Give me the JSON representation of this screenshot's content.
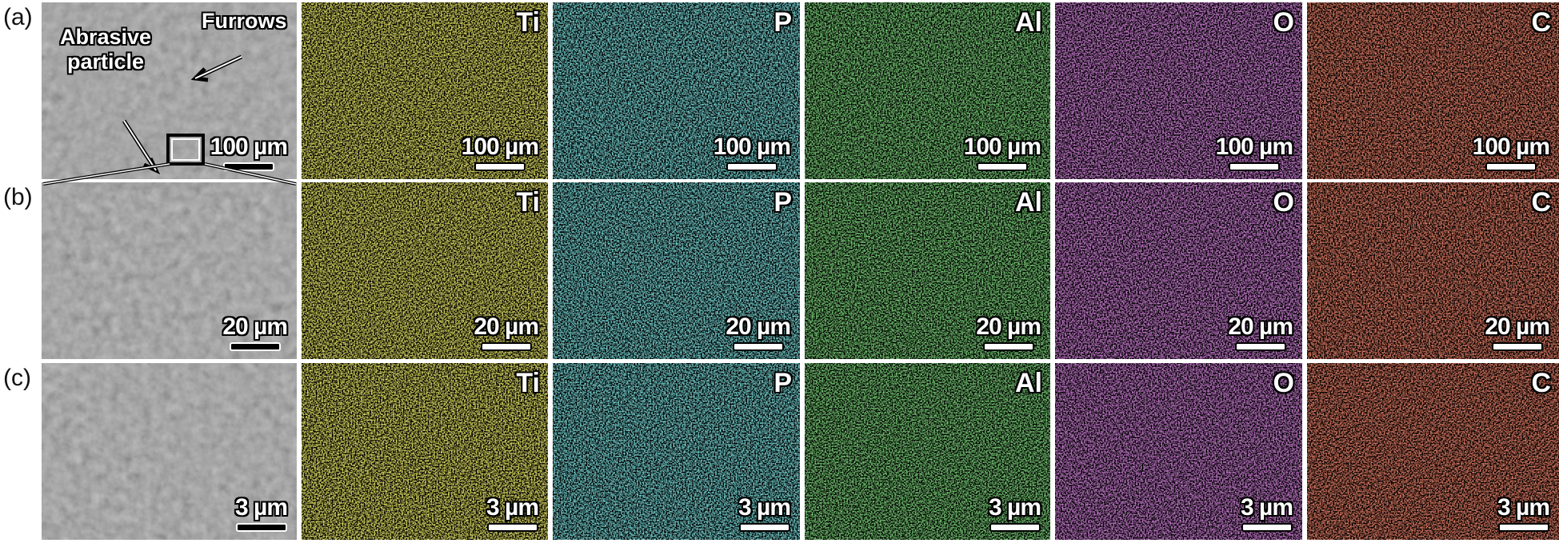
{
  "row_labels": [
    "(a)",
    "(b)",
    "(c)"
  ],
  "elements": [
    {
      "symbol": "Ti",
      "color": "#e6e02a"
    },
    {
      "symbol": "P",
      "color": "#3cc8c8"
    },
    {
      "symbol": "Al",
      "color": "#3cb83a"
    },
    {
      "symbol": "O",
      "color": "#b040c0"
    },
    {
      "symbol": "C",
      "color": "#e0402a"
    }
  ],
  "rows": [
    {
      "scale_bar": "100 µm",
      "annotations": {
        "furrows": "Furrows",
        "abrasive_particle": "Abrasive particle"
      }
    },
    {
      "scale_bar": "20 µm"
    },
    {
      "scale_bar": "3 µm"
    }
  ]
}
